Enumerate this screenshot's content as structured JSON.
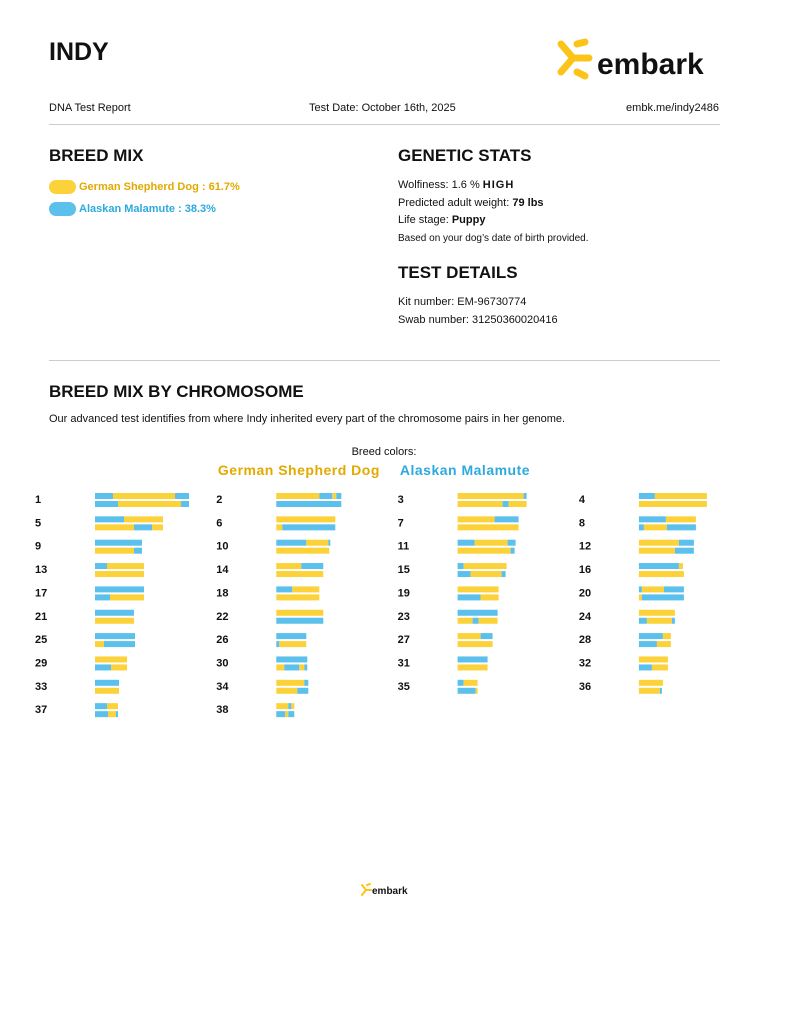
{
  "header": {
    "title": "INDY",
    "logo": "embark",
    "report": "DNA Test Report",
    "test_date": "Test Date: October 16th, 2025",
    "url": "embk.me/indy2486"
  },
  "breed_mix": {
    "title": "BREED MIX",
    "breeds": [
      {
        "label": "German Shepherd Dog : 61.7%",
        "color": "#fcd23a",
        "text_color": "#e2a900"
      },
      {
        "label": "Alaskan Malamute : 38.3%",
        "color": "#5bc0eb",
        "text_color": "#2ea9de"
      }
    ]
  },
  "genetic_stats": {
    "title": "GENETIC STATS",
    "items": [
      {
        "label": "Wolfiness: 1.6 %",
        "value": "HIGH"
      },
      {
        "label": "Predicted adult weight:",
        "value": "79 lbs"
      },
      {
        "label": "Life stage:",
        "value": "Puppy"
      }
    ],
    "note": "Based on your dog’s date of birth provided."
  },
  "test_details": {
    "title": "TEST DETAILS",
    "items": [
      "Kit number: EM-96730774",
      "Swab number: 31250360020416"
    ]
  },
  "chromosomes": {
    "title": "BREED MIX BY CHROMOSOME",
    "description": "Our advanced test identifies from where Indy inherited every part of the chromosome pairs in her genome.",
    "legend_title": "Breed colors:",
    "legend": [
      "German Shepherd Dog",
      "Alaskan Malamute"
    ],
    "pairs": [
      {
        "label": "1",
        "strands": [
          [
            [
              1,
              18
            ],
            [
              0,
              62
            ],
            [
              1,
              14
            ]
          ],
          [
            [
              1,
              23
            ],
            [
              0,
              63
            ],
            [
              1,
              8
            ]
          ]
        ]
      },
      {
        "label": "2",
        "strands": [
          [
            [
              0,
              43
            ],
            [
              1,
              13
            ],
            [
              0,
              4
            ],
            [
              1,
              5
            ]
          ],
          [
            [
              1,
              65
            ]
          ]
        ]
      },
      {
        "label": "3",
        "strands": [
          [
            [
              0,
              66
            ],
            [
              1,
              3
            ]
          ],
          [
            [
              0,
              45
            ],
            [
              1,
              6
            ],
            [
              0,
              18
            ]
          ]
        ]
      },
      {
        "label": "4",
        "strands": [
          [
            [
              1,
              16
            ],
            [
              0,
              52
            ]
          ],
          [
            [
              0,
              68
            ]
          ]
        ]
      },
      {
        "label": "5",
        "strands": [
          [
            [
              1,
              29
            ],
            [
              0,
              39
            ]
          ],
          [
            [
              0,
              39
            ],
            [
              1,
              18
            ],
            [
              0,
              11
            ]
          ]
        ]
      },
      {
        "label": "6",
        "strands": [
          [
            [
              0,
              59
            ]
          ],
          [
            [
              0,
              6
            ],
            [
              1,
              53
            ]
          ]
        ]
      },
      {
        "label": "7",
        "strands": [
          [
            [
              0,
              37
            ],
            [
              1,
              24
            ]
          ],
          [
            [
              0,
              61
            ]
          ]
        ]
      },
      {
        "label": "8",
        "strands": [
          [
            [
              1,
              27
            ],
            [
              0,
              30
            ]
          ],
          [
            [
              1,
              5
            ],
            [
              0,
              23
            ],
            [
              1,
              29
            ]
          ]
        ]
      },
      {
        "label": "9",
        "strands": [
          [
            [
              1,
              47
            ]
          ],
          [
            [
              0,
              39
            ],
            [
              1,
              8
            ]
          ]
        ]
      },
      {
        "label": "10",
        "strands": [
          [
            [
              1,
              30
            ],
            [
              0,
              22
            ],
            [
              1,
              2
            ]
          ],
          [
            [
              0,
              53
            ]
          ]
        ]
      },
      {
        "label": "11",
        "strands": [
          [
            [
              1,
              17
            ],
            [
              0,
              33
            ],
            [
              1,
              8
            ]
          ],
          [
            [
              0,
              53
            ],
            [
              1,
              4
            ]
          ]
        ]
      },
      {
        "label": "12",
        "strands": [
          [
            [
              0,
              40
            ],
            [
              1,
              15
            ]
          ],
          [
            [
              0,
              36
            ],
            [
              1,
              19
            ]
          ]
        ]
      },
      {
        "label": "13",
        "strands": [
          [
            [
              1,
              12
            ],
            [
              0,
              37
            ]
          ],
          [
            [
              0,
              49
            ]
          ]
        ]
      },
      {
        "label": "14",
        "strands": [
          [
            [
              0,
              25
            ],
            [
              1,
              22
            ]
          ],
          [
            [
              0,
              47
            ]
          ]
        ]
      },
      {
        "label": "15",
        "strands": [
          [
            [
              1,
              6
            ],
            [
              0,
              43
            ]
          ],
          [
            [
              1,
              13
            ],
            [
              0,
              31
            ],
            [
              1,
              4
            ]
          ]
        ]
      },
      {
        "label": "16",
        "strands": [
          [
            [
              1,
              40
            ],
            [
              0,
              4
            ]
          ],
          [
            [
              0,
              45
            ]
          ]
        ]
      },
      {
        "label": "17",
        "strands": [
          [
            [
              1,
              49
            ]
          ],
          [
            [
              1,
              15
            ],
            [
              0,
              34
            ]
          ]
        ]
      },
      {
        "label": "18",
        "strands": [
          [
            [
              1,
              16
            ],
            [
              0,
              27
            ]
          ],
          [
            [
              0,
              43
            ]
          ]
        ]
      },
      {
        "label": "19",
        "strands": [
          [
            [
              0,
              41
            ]
          ],
          [
            [
              1,
              23
            ],
            [
              0,
              18
            ]
          ]
        ]
      },
      {
        "label": "20",
        "strands": [
          [
            [
              1,
              3
            ],
            [
              0,
              22
            ],
            [
              1,
              20
            ]
          ],
          [
            [
              0,
              3
            ],
            [
              1,
              42
            ]
          ]
        ]
      },
      {
        "label": "21",
        "strands": [
          [
            [
              1,
              39
            ]
          ],
          [
            [
              0,
              39
            ]
          ]
        ]
      },
      {
        "label": "22",
        "strands": [
          [
            [
              0,
              47
            ]
          ],
          [
            [
              1,
              47
            ]
          ]
        ]
      },
      {
        "label": "23",
        "strands": [
          [
            [
              1,
              40
            ]
          ],
          [
            [
              0,
              15
            ],
            [
              1,
              6
            ],
            [
              0,
              19
            ]
          ]
        ]
      },
      {
        "label": "24",
        "strands": [
          [
            [
              0,
              36
            ]
          ],
          [
            [
              1,
              8
            ],
            [
              0,
              25
            ],
            [
              1,
              3
            ]
          ]
        ]
      },
      {
        "label": "25",
        "strands": [
          [
            [
              1,
              40
            ]
          ],
          [
            [
              0,
              9
            ],
            [
              1,
              31
            ]
          ]
        ]
      },
      {
        "label": "26",
        "strands": [
          [
            [
              1,
              30
            ]
          ],
          [
            [
              1,
              3
            ],
            [
              0,
              27
            ]
          ]
        ]
      },
      {
        "label": "27",
        "strands": [
          [
            [
              0,
              23
            ],
            [
              1,
              12
            ]
          ],
          [
            [
              0,
              35
            ]
          ]
        ]
      },
      {
        "label": "28",
        "strands": [
          [
            [
              1,
              24
            ],
            [
              0,
              8
            ]
          ],
          [
            [
              1,
              18
            ],
            [
              0,
              14
            ]
          ]
        ]
      },
      {
        "label": "29",
        "strands": [
          [
            [
              0,
              32
            ]
          ],
          [
            [
              1,
              16
            ],
            [
              0,
              16
            ]
          ]
        ]
      },
      {
        "label": "30",
        "strands": [
          [
            [
              1,
              31
            ]
          ],
          [
            [
              0,
              8
            ],
            [
              1,
              15
            ],
            [
              0,
              5
            ],
            [
              1,
              3
            ]
          ]
        ]
      },
      {
        "label": "31",
        "strands": [
          [
            [
              1,
              30
            ]
          ],
          [
            [
              0,
              30
            ]
          ]
        ]
      },
      {
        "label": "32",
        "strands": [
          [
            [
              0,
              29
            ]
          ],
          [
            [
              1,
              13
            ],
            [
              0,
              16
            ]
          ]
        ]
      },
      {
        "label": "33",
        "strands": [
          [
            [
              1,
              24
            ]
          ],
          [
            [
              0,
              24
            ]
          ]
        ]
      },
      {
        "label": "34",
        "strands": [
          [
            [
              0,
              28
            ],
            [
              1,
              4
            ]
          ],
          [
            [
              0,
              21
            ],
            [
              1,
              11
            ]
          ]
        ]
      },
      {
        "label": "35",
        "strands": [
          [
            [
              1,
              6
            ],
            [
              0,
              14
            ]
          ],
          [
            [
              1,
              18
            ],
            [
              0,
              2
            ]
          ]
        ]
      },
      {
        "label": "36",
        "strands": [
          [
            [
              0,
              24
            ]
          ],
          [
            [
              0,
              21
            ],
            [
              1,
              2
            ]
          ]
        ]
      },
      {
        "label": "37",
        "strands": [
          [
            [
              1,
              12
            ],
            [
              0,
              11
            ]
          ],
          [
            [
              1,
              13
            ],
            [
              0,
              8
            ],
            [
              1,
              2
            ]
          ]
        ]
      },
      {
        "label": "38",
        "strands": [
          [
            [
              0,
              12
            ],
            [
              1,
              3
            ],
            [
              0,
              3
            ]
          ],
          [
            [
              1,
              9
            ],
            [
              0,
              3
            ],
            [
              1,
              6
            ]
          ]
        ]
      }
    ]
  },
  "footer": {
    "logo": "embark"
  }
}
